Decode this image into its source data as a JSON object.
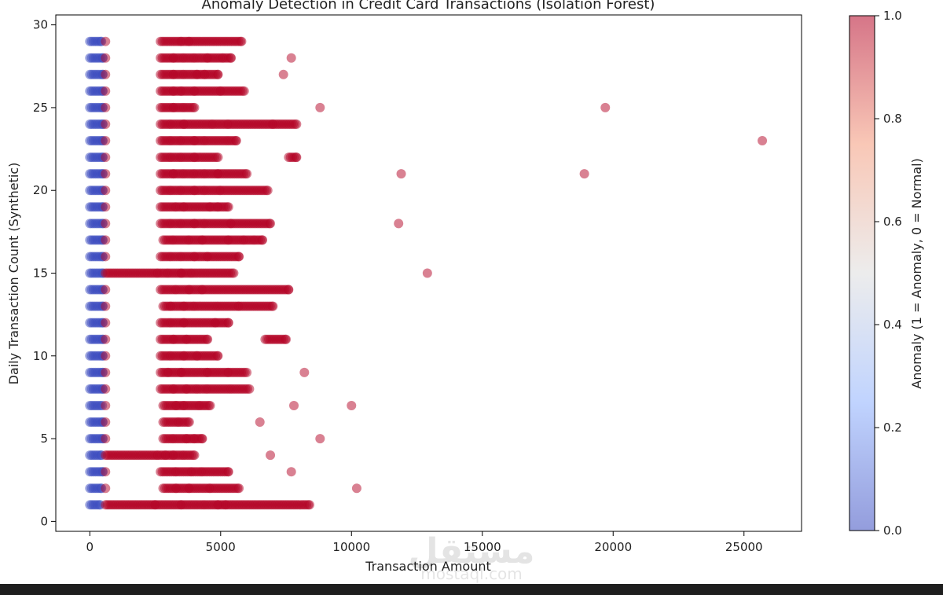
{
  "chart_data": {
    "type": "scatter",
    "title": "Anomaly Detection in Credit Card Transactions (Isolation Forest)",
    "xlabel": "Transaction Amount",
    "ylabel": "Daily Transaction Count (Synthetic)",
    "xlim": [
      -1300,
      27200
    ],
    "ylim": [
      -0.6,
      30.6
    ],
    "x_ticks": [
      "0",
      "5000",
      "10000",
      "15000",
      "20000",
      "25000"
    ],
    "y_ticks": [
      "0",
      "5",
      "10",
      "15",
      "20",
      "25",
      "30"
    ],
    "grid": false,
    "colormap": "coolwarm",
    "marker_alpha": 0.5,
    "colorbar": {
      "label": "Anomaly (1 = Anomaly, 0 = Normal)",
      "ticks": [
        "0.0",
        "0.2",
        "0.4",
        "0.6",
        "0.8",
        "1.0"
      ],
      "min_color": "#3b4cc0",
      "mid_color": "#dddddd",
      "max_color": "#b40426"
    },
    "series": [
      {
        "anomaly": 0,
        "color": "#3b4cc0",
        "points": [
          [
            0,
            1
          ],
          [
            400,
            1
          ],
          [
            0,
            2
          ],
          [
            450,
            2
          ],
          [
            0,
            3
          ],
          [
            500,
            3
          ],
          [
            0,
            4
          ],
          [
            450,
            4
          ],
          [
            0,
            5
          ],
          [
            500,
            5
          ],
          [
            0,
            6
          ],
          [
            500,
            6
          ],
          [
            0,
            7
          ],
          [
            480,
            7
          ],
          [
            0,
            8
          ],
          [
            500,
            8
          ],
          [
            0,
            9
          ],
          [
            500,
            9
          ],
          [
            0,
            10
          ],
          [
            500,
            10
          ],
          [
            0,
            11
          ],
          [
            500,
            11
          ],
          [
            0,
            12
          ],
          [
            500,
            12
          ],
          [
            0,
            13
          ],
          [
            500,
            13
          ],
          [
            0,
            14
          ],
          [
            500,
            14
          ],
          [
            0,
            15
          ],
          [
            500,
            15
          ],
          [
            0,
            16
          ],
          [
            500,
            16
          ],
          [
            0,
            17
          ],
          [
            500,
            17
          ],
          [
            0,
            18
          ],
          [
            500,
            18
          ],
          [
            0,
            19
          ],
          [
            500,
            19
          ],
          [
            0,
            20
          ],
          [
            500,
            20
          ],
          [
            0,
            21
          ],
          [
            500,
            21
          ],
          [
            0,
            22
          ],
          [
            500,
            22
          ],
          [
            0,
            23
          ],
          [
            500,
            23
          ],
          [
            0,
            24
          ],
          [
            500,
            24
          ],
          [
            0,
            25
          ],
          [
            500,
            25
          ],
          [
            0,
            26
          ],
          [
            500,
            26
          ],
          [
            0,
            27
          ],
          [
            500,
            27
          ],
          [
            0,
            28
          ],
          [
            500,
            28
          ],
          [
            0,
            29
          ],
          [
            450,
            29
          ]
        ]
      },
      {
        "anomaly": 1,
        "color": "#b40426",
        "points": [
          [
            600,
            1
          ],
          [
            2500,
            1
          ],
          [
            3500,
            1
          ],
          [
            4400,
            1
          ],
          [
            4900,
            1
          ],
          [
            5200,
            1
          ],
          [
            6600,
            1
          ],
          [
            8400,
            1
          ],
          [
            600,
            2
          ],
          [
            2800,
            2
          ],
          [
            3300,
            2
          ],
          [
            3800,
            2
          ],
          [
            4600,
            2
          ],
          [
            5700,
            2
          ],
          [
            10200,
            2
          ],
          [
            600,
            3
          ],
          [
            2700,
            3
          ],
          [
            3300,
            3
          ],
          [
            3900,
            3
          ],
          [
            4300,
            3
          ],
          [
            5300,
            3
          ],
          [
            7700,
            3
          ],
          [
            600,
            4
          ],
          [
            2600,
            4
          ],
          [
            2900,
            4
          ],
          [
            3200,
            4
          ],
          [
            3600,
            4
          ],
          [
            4000,
            4
          ],
          [
            6900,
            4
          ],
          [
            600,
            5
          ],
          [
            2800,
            5
          ],
          [
            3200,
            5
          ],
          [
            3700,
            5
          ],
          [
            4000,
            5
          ],
          [
            4300,
            5
          ],
          [
            8800,
            5
          ],
          [
            600,
            6
          ],
          [
            2800,
            6
          ],
          [
            3400,
            6
          ],
          [
            3800,
            6
          ],
          [
            6500,
            6
          ],
          [
            600,
            7
          ],
          [
            2800,
            7
          ],
          [
            3300,
            7
          ],
          [
            3600,
            7
          ],
          [
            4200,
            7
          ],
          [
            4600,
            7
          ],
          [
            7800,
            7
          ],
          [
            10000,
            7
          ],
          [
            600,
            8
          ],
          [
            2700,
            8
          ],
          [
            3200,
            8
          ],
          [
            3700,
            8
          ],
          [
            4100,
            8
          ],
          [
            4500,
            8
          ],
          [
            5400,
            8
          ],
          [
            6100,
            8
          ],
          [
            600,
            9
          ],
          [
            2700,
            9
          ],
          [
            3000,
            9
          ],
          [
            3500,
            9
          ],
          [
            4500,
            9
          ],
          [
            5300,
            9
          ],
          [
            6000,
            9
          ],
          [
            8200,
            9
          ],
          [
            600,
            10
          ],
          [
            2700,
            10
          ],
          [
            3100,
            10
          ],
          [
            3600,
            10
          ],
          [
            4100,
            10
          ],
          [
            4900,
            10
          ],
          [
            600,
            11
          ],
          [
            2700,
            11
          ],
          [
            3200,
            11
          ],
          [
            3700,
            11
          ],
          [
            4500,
            11
          ],
          [
            6700,
            11
          ],
          [
            7500,
            11
          ],
          [
            600,
            12
          ],
          [
            2700,
            12
          ],
          [
            3100,
            12
          ],
          [
            3600,
            12
          ],
          [
            4300,
            12
          ],
          [
            4800,
            12
          ],
          [
            5300,
            12
          ],
          [
            600,
            13
          ],
          [
            2800,
            13
          ],
          [
            3100,
            13
          ],
          [
            3600,
            13
          ],
          [
            4000,
            13
          ],
          [
            4900,
            13
          ],
          [
            5700,
            13
          ],
          [
            7000,
            13
          ],
          [
            600,
            14
          ],
          [
            2700,
            14
          ],
          [
            3300,
            14
          ],
          [
            3800,
            14
          ],
          [
            4300,
            14
          ],
          [
            5000,
            14
          ],
          [
            5700,
            14
          ],
          [
            7600,
            14
          ],
          [
            600,
            15
          ],
          [
            2600,
            15
          ],
          [
            3000,
            15
          ],
          [
            3500,
            15
          ],
          [
            3900,
            15
          ],
          [
            4600,
            15
          ],
          [
            5500,
            15
          ],
          [
            12900,
            15
          ],
          [
            600,
            16
          ],
          [
            2700,
            16
          ],
          [
            3100,
            16
          ],
          [
            3500,
            16
          ],
          [
            4000,
            16
          ],
          [
            4500,
            16
          ],
          [
            5700,
            16
          ],
          [
            600,
            17
          ],
          [
            2800,
            17
          ],
          [
            3200,
            17
          ],
          [
            3800,
            17
          ],
          [
            4300,
            17
          ],
          [
            5300,
            17
          ],
          [
            5900,
            17
          ],
          [
            6300,
            17
          ],
          [
            6600,
            17
          ],
          [
            600,
            18
          ],
          [
            2700,
            18
          ],
          [
            3100,
            18
          ],
          [
            3500,
            18
          ],
          [
            4000,
            18
          ],
          [
            4400,
            18
          ],
          [
            5400,
            18
          ],
          [
            6900,
            18
          ],
          [
            11800,
            18
          ],
          [
            600,
            19
          ],
          [
            2700,
            19
          ],
          [
            3300,
            19
          ],
          [
            3600,
            19
          ],
          [
            4600,
            19
          ],
          [
            4900,
            19
          ],
          [
            5300,
            19
          ],
          [
            600,
            20
          ],
          [
            2700,
            20
          ],
          [
            3100,
            20
          ],
          [
            3500,
            20
          ],
          [
            4000,
            20
          ],
          [
            4400,
            20
          ],
          [
            5000,
            20
          ],
          [
            6800,
            20
          ],
          [
            600,
            21
          ],
          [
            2700,
            21
          ],
          [
            3200,
            21
          ],
          [
            3600,
            21
          ],
          [
            4000,
            21
          ],
          [
            4400,
            21
          ],
          [
            4900,
            21
          ],
          [
            6000,
            21
          ],
          [
            11900,
            21
          ],
          [
            18900,
            21
          ],
          [
            600,
            22
          ],
          [
            2700,
            22
          ],
          [
            3100,
            22
          ],
          [
            3500,
            22
          ],
          [
            4000,
            22
          ],
          [
            4900,
            22
          ],
          [
            7600,
            22
          ],
          [
            7900,
            22
          ],
          [
            600,
            23
          ],
          [
            2700,
            23
          ],
          [
            3100,
            23
          ],
          [
            3500,
            23
          ],
          [
            4000,
            23
          ],
          [
            4400,
            23
          ],
          [
            5300,
            23
          ],
          [
            5600,
            23
          ],
          [
            25700,
            23
          ],
          [
            600,
            24
          ],
          [
            2700,
            24
          ],
          [
            3100,
            24
          ],
          [
            3600,
            24
          ],
          [
            4700,
            24
          ],
          [
            5300,
            24
          ],
          [
            7000,
            24
          ],
          [
            7900,
            24
          ],
          [
            600,
            25
          ],
          [
            2700,
            25
          ],
          [
            3200,
            25
          ],
          [
            3600,
            25
          ],
          [
            4000,
            25
          ],
          [
            8800,
            25
          ],
          [
            19700,
            25
          ],
          [
            600,
            26
          ],
          [
            2700,
            26
          ],
          [
            3200,
            26
          ],
          [
            3500,
            26
          ],
          [
            4000,
            26
          ],
          [
            5000,
            26
          ],
          [
            5900,
            26
          ],
          [
            600,
            27
          ],
          [
            2700,
            27
          ],
          [
            3200,
            27
          ],
          [
            3600,
            27
          ],
          [
            4100,
            27
          ],
          [
            4400,
            27
          ],
          [
            4900,
            27
          ],
          [
            7400,
            27
          ],
          [
            600,
            28
          ],
          [
            2700,
            28
          ],
          [
            3200,
            28
          ],
          [
            3600,
            28
          ],
          [
            4000,
            28
          ],
          [
            4500,
            28
          ],
          [
            5100,
            28
          ],
          [
            5400,
            28
          ],
          [
            7700,
            28
          ],
          [
            600,
            29
          ],
          [
            2700,
            29
          ],
          [
            3500,
            29
          ],
          [
            3800,
            29
          ],
          [
            4500,
            29
          ],
          [
            5800,
            29
          ]
        ]
      }
    ]
  },
  "watermark": {
    "logo": "مستقل",
    "url": "mostaql.com"
  }
}
